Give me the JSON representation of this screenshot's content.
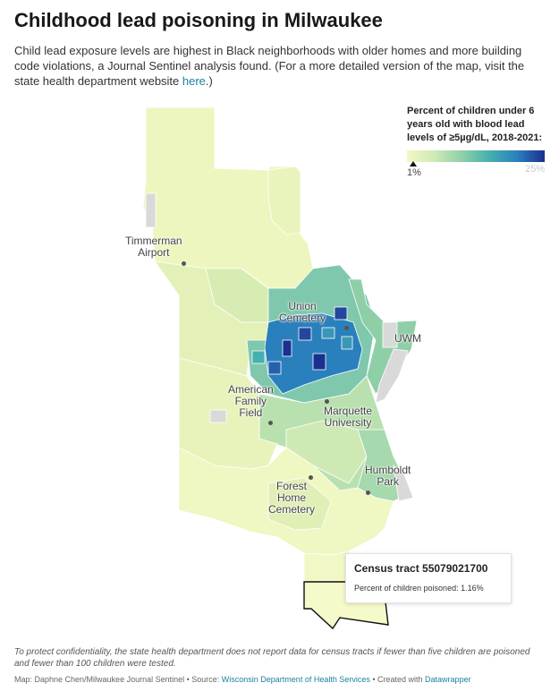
{
  "title": "Childhood lead poisoning in Milwaukee",
  "intro": {
    "text": "Child lead exposure levels are highest in Black neighborhoods with older homes and more building code violations, a Journal Sentinel analysis found. (For a more detailed version of the map, visit the state health department website ",
    "link": "here",
    "end": ".)"
  },
  "legend": {
    "title": "Percent of children under 6 years old with blood lead levels of ≥5µg/dL, 2018-2021:",
    "min_label": "1%",
    "max_label": "25%",
    "colors": [
      "#f2f8c5",
      "#cfeab5",
      "#8fcfa8",
      "#45b0b0",
      "#2a80bd",
      "#1b2f8f"
    ]
  },
  "places": {
    "timmerman": [
      "Timmerman",
      "Airport"
    ],
    "union": [
      "Union",
      "Cemetery"
    ],
    "uwm": "UWM",
    "american": [
      "American",
      "Family",
      "Field"
    ],
    "marquette": [
      "Marquette",
      "University"
    ],
    "humboldt": [
      "Humboldt",
      "Park"
    ],
    "forest": [
      "Forest",
      "Home",
      "Cemetery"
    ]
  },
  "tooltip": {
    "title": "Census tract 55079021700",
    "body": "Percent of children poisoned: 1.16%"
  },
  "notes": "To protect confidentiality, the state health department does not report data for census tracts if fewer than five children are poisoned and fewer than 100 children were tested.",
  "credit": {
    "map": "Map: Daphne Chen/Milwaukee Journal Sentinel • Source: ",
    "source": "Wisconsin Department of Health Services",
    "created": " • Created with ",
    "tool": "Datawrapper"
  }
}
